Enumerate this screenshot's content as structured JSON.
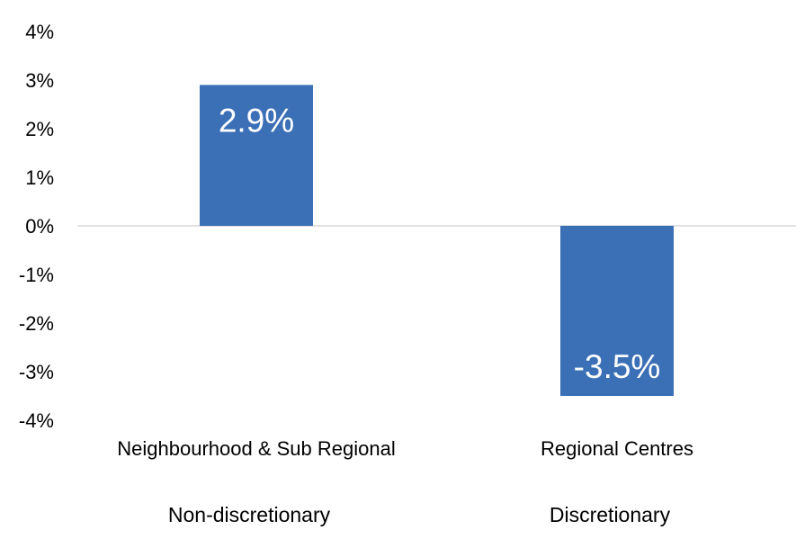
{
  "chart_data": {
    "type": "bar",
    "title": "",
    "xlabel": "",
    "ylabel": "",
    "categories": [
      "Neighbourhood & Sub Regional",
      "Regional Centres"
    ],
    "groups": [
      "Non-discretionary",
      "Discretionary"
    ],
    "values": [
      2.9,
      -3.5
    ],
    "data_labels": [
      "2.9%",
      "-3.5%"
    ],
    "ylim": [
      -4,
      4
    ],
    "yticks": [
      4,
      3,
      2,
      1,
      0,
      -1,
      -2,
      -3,
      -4
    ],
    "ytick_labels": [
      "4%",
      "3%",
      "2%",
      "1%",
      "0%",
      "-1%",
      "-2%",
      "-3%",
      "-4%"
    ],
    "grid": false,
    "legend": "none",
    "bar_color": "#3b6fb6",
    "axis_color": "#d9d9d9"
  }
}
